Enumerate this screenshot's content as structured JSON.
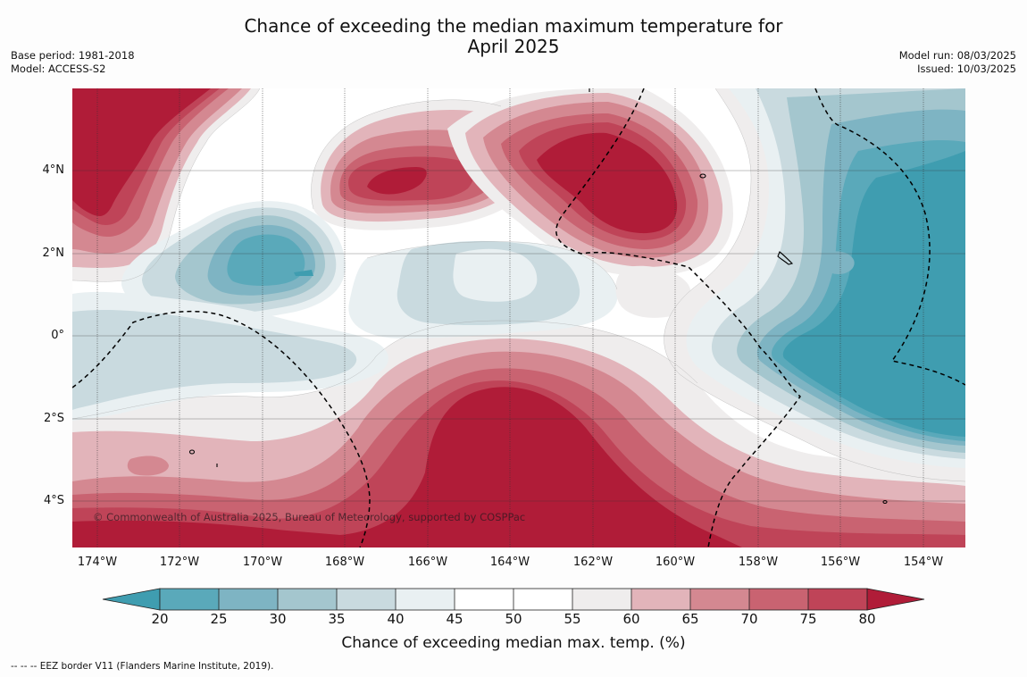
{
  "title_line1": "Chance of exceeding the median maximum temperature for",
  "title_line2": "April 2025",
  "base_period": "Base period: 1981-2018",
  "model": "Model: ACCESS-S2",
  "model_run": "Model run: 08/03/2025",
  "issued": "Issued: 10/03/2025",
  "copyright": "© Commonwealth of Australia 2025, Bureau of Meteorology, supported by COSPPac",
  "footer": "--  --  -- EEZ border V11 (Flanders Marine Institute, 2019).",
  "lat_labels": [
    "4°N",
    "2°N",
    "0°",
    "2°S",
    "4°S"
  ],
  "lon_labels": [
    "174°W",
    "172°W",
    "170°W",
    "168°W",
    "166°W",
    "164°W",
    "162°W",
    "160°W",
    "158°W",
    "156°W",
    "154°W"
  ],
  "colorbar": {
    "title": "Chance of exceeding median max. temp. (%)",
    "ticks": [
      "20",
      "25",
      "30",
      "35",
      "40",
      "45",
      "50",
      "55",
      "60",
      "65",
      "70",
      "75",
      "80"
    ],
    "colors": {
      "lt20": "#3f9db0",
      "20-25": "#5aa9ba",
      "25-30": "#7eb4c3",
      "30-35": "#a4c6ce",
      "35-40": "#c9dadf",
      "40-45": "#e9f0f2",
      "45-50": "#ffffff",
      "50-55": "#ffffff",
      "55-60": "#efeded",
      "60-65": "#e2b4ba",
      "65-70": "#d48891",
      "70-75": "#c96371",
      "75-80": "#bf4458",
      "gt80": "#b01c38"
    }
  }
}
